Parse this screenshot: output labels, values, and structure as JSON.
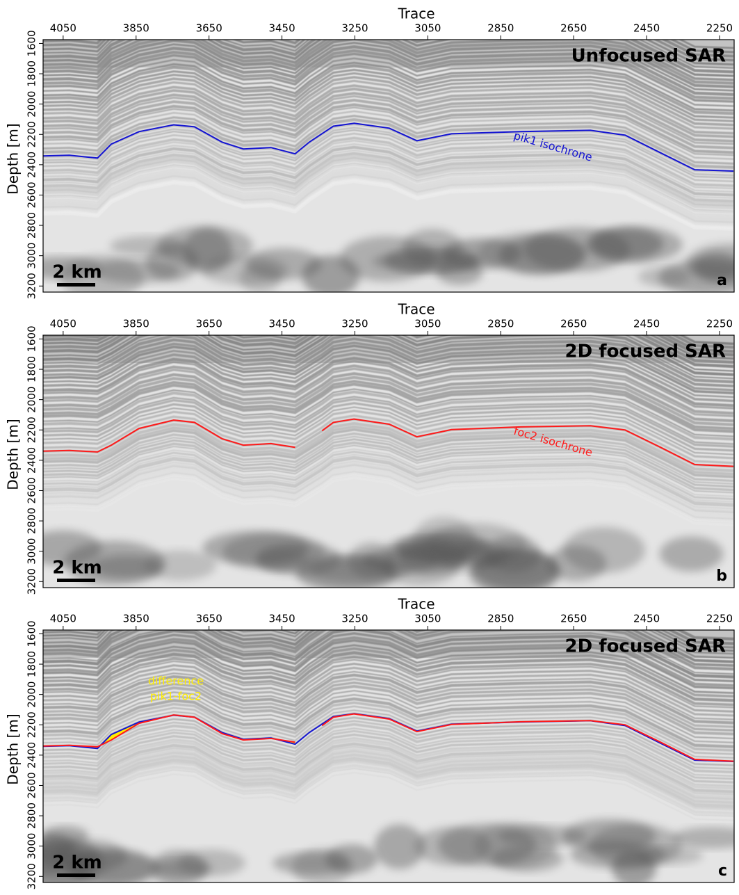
{
  "chart_data": [
    {
      "type": "line",
      "title": "Unfocused SAR",
      "panel_label": "a",
      "x_label": "Trace",
      "y_label": "Depth [m]",
      "scale_label": "2 km",
      "xlim": [
        4105,
        2210
      ],
      "ylim": [
        3240,
        1575
      ],
      "xticks": [
        4050,
        3850,
        3650,
        3450,
        3250,
        3050,
        2850,
        2650,
        2450,
        2250
      ],
      "yticks": [
        1600,
        1800,
        2000,
        2200,
        2400,
        2600,
        2800,
        3000,
        3200
      ],
      "x": [
        4105,
        4033,
        3956,
        3918,
        3842,
        3747,
        3690,
        3614,
        3556,
        3480,
        3414,
        3375,
        3340,
        3309,
        3252,
        3156,
        3080,
        2985,
        2795,
        2604,
        2509,
        2414,
        2318,
        2212
      ],
      "series": [
        {
          "name": "pik1 isochrone",
          "color": "#1414d2",
          "values": [
            2342,
            2338,
            2356,
            2264,
            2182,
            2137,
            2150,
            2251,
            2296,
            2287,
            2328,
            2251,
            2195,
            2146,
            2127,
            2159,
            2242,
            2196,
            2182,
            2173,
            2205,
            2319,
            2433,
            2442
          ]
        }
      ]
    },
    {
      "type": "line",
      "title": "2D focused SAR",
      "panel_label": "b",
      "x_label": "Trace",
      "y_label": "Depth [m]",
      "scale_label": "2 km",
      "xlim": [
        4105,
        2210
      ],
      "ylim": [
        3240,
        1575
      ],
      "xticks": [
        4050,
        3850,
        3650,
        3450,
        3250,
        3050,
        2850,
        2650,
        2450,
        2250
      ],
      "yticks": [
        1600,
        1800,
        2000,
        2200,
        2400,
        2600,
        2800,
        3000,
        3200
      ],
      "x": [
        4105,
        4033,
        3956,
        3918,
        3842,
        3747,
        3690,
        3614,
        3556,
        3480,
        3414,
        3375,
        3340,
        3309,
        3252,
        3156,
        3080,
        2985,
        2795,
        2604,
        2509,
        2414,
        2318,
        2212
      ],
      "series": [
        {
          "name": "foc2 isochrone",
          "color": "#ff1a1a",
          "values": [
            2340,
            2335,
            2345,
            2300,
            2190,
            2135,
            2150,
            2258,
            2300,
            2290,
            2315,
            null,
            2205,
            2150,
            2128,
            2162,
            2245,
            2198,
            2180,
            2172,
            2200,
            2312,
            2428,
            2440
          ]
        }
      ]
    },
    {
      "type": "line",
      "title": "2D focused SAR",
      "panel_label": "c",
      "x_label": "Trace",
      "y_label": "Depth [m]",
      "scale_label": "2 km",
      "annotation": [
        "difference",
        "pik1-foc2"
      ],
      "difference_color": "#ffee00",
      "xlim": [
        4105,
        2210
      ],
      "ylim": [
        3240,
        1575
      ],
      "xticks": [
        4050,
        3850,
        3650,
        3450,
        3250,
        3050,
        2850,
        2650,
        2450,
        2250
      ],
      "yticks": [
        1600,
        1800,
        2000,
        2200,
        2400,
        2600,
        2800,
        3000,
        3200
      ],
      "x": [
        4105,
        4033,
        3956,
        3918,
        3842,
        3747,
        3690,
        3614,
        3556,
        3480,
        3414,
        3375,
        3340,
        3309,
        3252,
        3156,
        3080,
        2985,
        2795,
        2604,
        2509,
        2414,
        2318,
        2212
      ],
      "series": [
        {
          "color": "#1414d2",
          "values": [
            2342,
            2338,
            2356,
            2264,
            2182,
            2137,
            2150,
            2251,
            2296,
            2287,
            2328,
            2251,
            2195,
            2146,
            2127,
            2159,
            2242,
            2196,
            2182,
            2173,
            2205,
            2319,
            2433,
            2442
          ]
        },
        {
          "color": "#ff1a1a",
          "values": [
            2340,
            2335,
            2345,
            2300,
            2190,
            2135,
            2150,
            2258,
            2300,
            2290,
            2315,
            null,
            2205,
            2150,
            2128,
            2162,
            2245,
            2198,
            2180,
            2172,
            2200,
            2312,
            2428,
            2440
          ]
        }
      ]
    }
  ]
}
